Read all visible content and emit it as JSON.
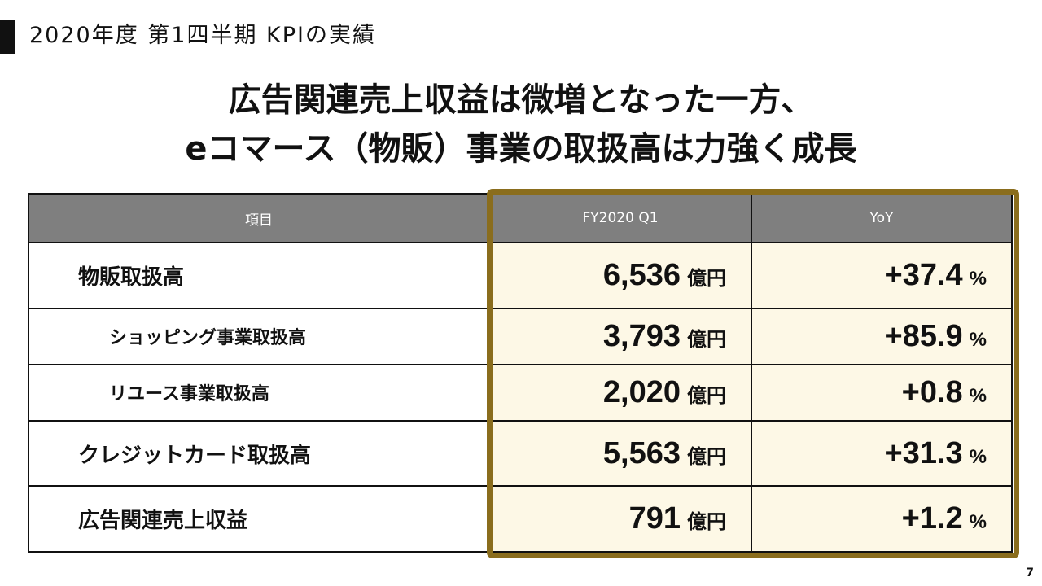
{
  "slide": {
    "section_title": "2020年度 第1四半期 KPIの実績",
    "headline_line1": "広告関連売上収益は微増となった一方、",
    "headline_line2": "eコマース（物販）事業の取扱高は力強く成長",
    "page_number": "7"
  },
  "table": {
    "headers": [
      "項目",
      "FY2020 Q1",
      "YoY"
    ],
    "unit": "億円",
    "percent_unit": "%",
    "rows": [
      {
        "label": "物販取扱高",
        "value": "6,536",
        "yoy": "+37.4"
      },
      {
        "label": "ショッピング事業取扱高",
        "value": "3,793",
        "yoy": "+85.9"
      },
      {
        "label": "リユース事業取扱高",
        "value": "2,020",
        "yoy": "+0.8"
      },
      {
        "label": "クレジットカード取扱高",
        "value": "5,563",
        "yoy": "+31.3"
      },
      {
        "label": "広告関連売上収益",
        "value": "791",
        "yoy": "+1.2"
      }
    ]
  },
  "colors": {
    "header_bg": "#7f7f7f",
    "highlight_bg": "#fdf8e6",
    "highlight_border": "#8a6d1d"
  }
}
